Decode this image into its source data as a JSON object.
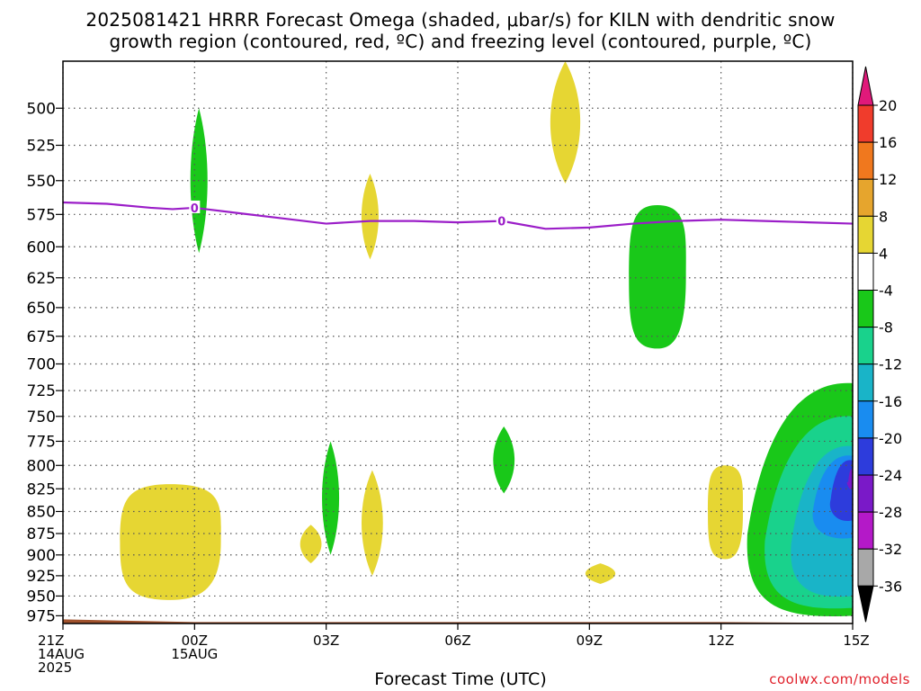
{
  "title_line1": "2025081421 HRRR Forecast Omega (shaded, μbar/s) for KILN with dendritic snow",
  "title_line2": "growth region (contoured, red, ºC) and freezing level (contoured, purple, ºC)",
  "credit": "coolwx.com/models",
  "chart_data": {
    "type": "contour",
    "title": "2025081421 HRRR Forecast Omega (shaded, μbar/s) for KILN with dendritic snow growth region (contoured, red, ºC) and freezing level (contoured, purple, ºC)",
    "xlabel": "Forecast Time (UTC)",
    "ylabel": "",
    "x_range_hours": [
      0,
      18
    ],
    "y_range_hpa": [
      985,
      470
    ],
    "y_scale": "log",
    "grid": true,
    "x_ticks": [
      {
        "hour": 0,
        "label": [
          "21Z",
          "14AUG",
          "2025"
        ]
      },
      {
        "hour": 3,
        "label": [
          "00Z",
          "15AUG"
        ]
      },
      {
        "hour": 6,
        "label": [
          "03Z"
        ]
      },
      {
        "hour": 9,
        "label": [
          "06Z"
        ]
      },
      {
        "hour": 12,
        "label": [
          "09Z"
        ]
      },
      {
        "hour": 15,
        "label": [
          "12Z"
        ]
      },
      {
        "hour": 18,
        "label": [
          "15Z"
        ]
      }
    ],
    "y_ticks": [
      500,
      525,
      550,
      575,
      600,
      625,
      650,
      675,
      700,
      725,
      750,
      775,
      800,
      825,
      850,
      875,
      900,
      925,
      950,
      975
    ],
    "colorbar": {
      "labels": [
        "20",
        "16",
        "12",
        "8",
        "4",
        "-4",
        "-8",
        "-12",
        "-16",
        "-20",
        "-24",
        "-28",
        "-32",
        "-36"
      ],
      "colors": [
        "#e0197a",
        "#f03c2c",
        "#f0781e",
        "#e6a52d",
        "#e6d633",
        "#ffffff",
        "#19c819",
        "#19d28c",
        "#19b4c8",
        "#198cf0",
        "#2d3cdc",
        "#7a19c8",
        "#b419c8",
        "#a8a8a8"
      ],
      "top_arrow_color": "#e0197a",
      "bottom_arrow_color": "#000000"
    },
    "freezing_level": {
      "color": "#9b1ec8",
      "label": "0",
      "hours": [
        0,
        1,
        2,
        2.5,
        3,
        4,
        5,
        6,
        7,
        8,
        9,
        10,
        11,
        12,
        13,
        14,
        15,
        16,
        17,
        18
      ],
      "pressure_hpa": [
        566,
        567,
        570,
        571,
        570,
        574,
        578,
        582,
        580,
        580,
        581,
        580,
        586,
        585,
        582,
        580,
        579,
        580,
        581,
        582
      ]
    },
    "terrain": {
      "color": "#a0522d",
      "surface_pressure_hpa": 982
    },
    "omega_regions": [
      {
        "value_class": 4,
        "hours": [
          1.3,
          3.6
        ],
        "pressure_hpa": [
          820,
          955
        ]
      },
      {
        "value_class": -4,
        "hours": [
          2.9,
          3.3
        ],
        "pressure_hpa": [
          500,
          605
        ]
      },
      {
        "value_class": 4,
        "hours": [
          5.4,
          5.9
        ],
        "pressure_hpa": [
          865,
          910
        ]
      },
      {
        "value_class": -4,
        "hours": [
          5.9,
          6.3
        ],
        "pressure_hpa": [
          775,
          900
        ]
      },
      {
        "value_class": 4,
        "hours": [
          6.8,
          7.2
        ],
        "pressure_hpa": [
          545,
          610
        ]
      },
      {
        "value_class": 4,
        "hours": [
          6.8,
          7.3
        ],
        "pressure_hpa": [
          805,
          925
        ]
      },
      {
        "value_class": -4,
        "hours": [
          9.8,
          10.3
        ],
        "pressure_hpa": [
          760,
          830
        ]
      },
      {
        "value_class": 4,
        "hours": [
          11.1,
          11.8
        ],
        "pressure_hpa": [
          470,
          552
        ]
      },
      {
        "value_class": -4,
        "hours": [
          12.9,
          14.2
        ],
        "pressure_hpa": [
          568,
          686
        ]
      },
      {
        "value_class": 4,
        "hours": [
          11.9,
          12.6
        ],
        "pressure_hpa": [
          910,
          935
        ]
      },
      {
        "value_class": 4,
        "hours": [
          14.7,
          15.5
        ],
        "pressure_hpa": [
          800,
          905
        ]
      },
      {
        "value_class": -8,
        "hours": [
          15.6,
          18
        ],
        "pressure_hpa": [
          718,
          975
        ],
        "note": "strong upward motion core near 15Z around 800-825 hPa reaching -28"
      }
    ]
  }
}
